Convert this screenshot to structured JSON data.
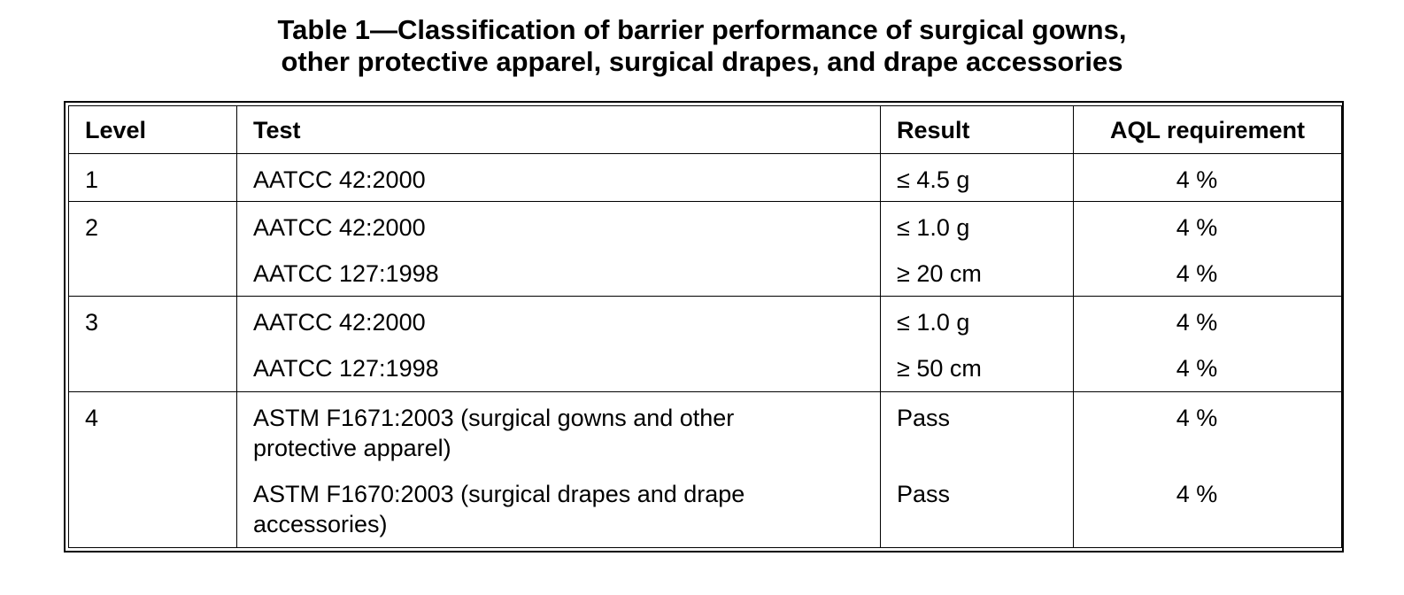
{
  "caption": {
    "line1": "Table 1—Classification of barrier performance of surgical gowns,",
    "line2": "other protective apparel, surgical drapes, and drape accessories"
  },
  "headers": {
    "level": "Level",
    "test": "Test",
    "result": "Result",
    "aql": "AQL requirement"
  },
  "rows": [
    {
      "level": "1",
      "tests": [
        {
          "test": "AATCC 42:2000",
          "result": "≤ 4.5 g",
          "aql": "4 %"
        }
      ]
    },
    {
      "level": "2",
      "tests": [
        {
          "test": "AATCC 42:2000",
          "result": "≤ 1.0 g",
          "aql": "4 %"
        },
        {
          "test": "AATCC 127:1998",
          "result": "≥ 20 cm",
          "aql": "4 %"
        }
      ]
    },
    {
      "level": "3",
      "tests": [
        {
          "test": "AATCC 42:2000",
          "result": "≤ 1.0 g",
          "aql": "4 %"
        },
        {
          "test": "AATCC 127:1998",
          "result": "≥ 50 cm",
          "aql": "4 %"
        }
      ]
    },
    {
      "level": "4",
      "tests": [
        {
          "test": "ASTM F1671:2003 (surgical gowns and other protective apparel)",
          "result": "Pass",
          "aql": "4 %"
        },
        {
          "test": "ASTM F1670:2003 (surgical drapes and drape accessories)",
          "result": "Pass",
          "aql": "4 %"
        }
      ]
    }
  ]
}
